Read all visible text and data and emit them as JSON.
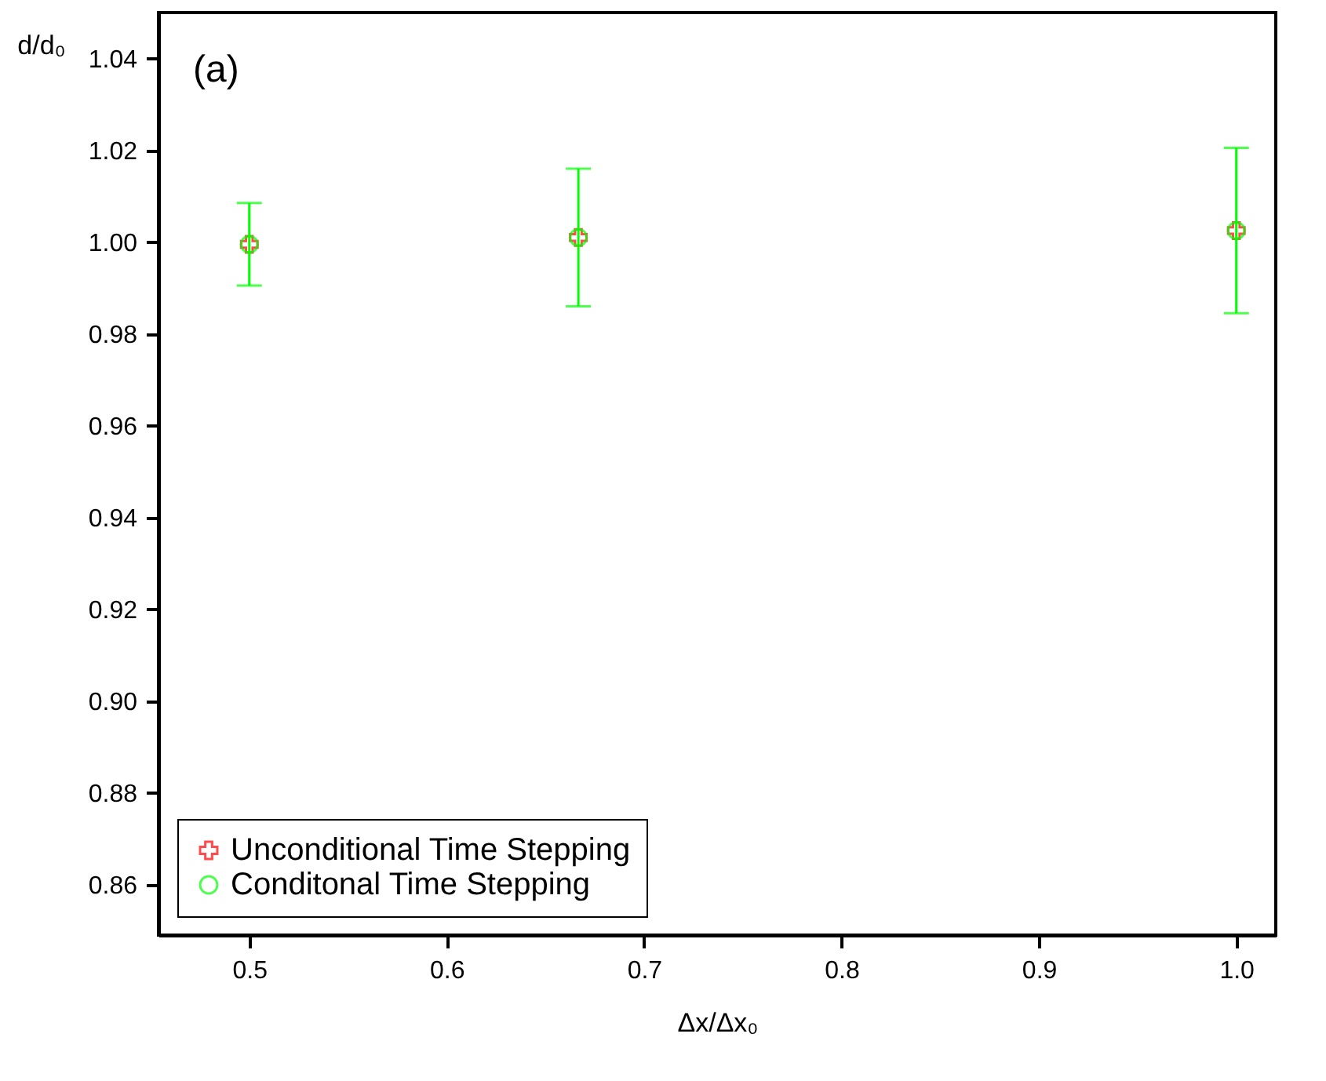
{
  "chart_data": {
    "type": "scatter",
    "xlabel": "Δx/Δx₀",
    "ylabel": "d/d₀",
    "annotations": [
      "(a)"
    ],
    "x": [
      0.5,
      0.6667,
      1.0
    ],
    "series": [
      {
        "name": "Unconditional Time Stepping",
        "color": "#ff0000",
        "marker": "cross",
        "values": [
          0.9995,
          1.001,
          1.0025
        ]
      },
      {
        "name": "Conditonal Time Stepping",
        "color": "#00ff00",
        "marker": "circle",
        "values": [
          0.9995,
          1.001,
          1.0025
        ],
        "errors": [
          0.009,
          0.015,
          0.018
        ]
      }
    ],
    "xlim": [
      0.454,
      1.02
    ],
    "xticks": [
      {
        "value": 0.5,
        "label": "0.5"
      },
      {
        "value": 0.6,
        "label": "0.6"
      },
      {
        "value": 0.7,
        "label": "0.7"
      },
      {
        "value": 0.8,
        "label": "0.8"
      },
      {
        "value": 0.9,
        "label": "0.9"
      },
      {
        "value": 1.0,
        "label": "1.0"
      }
    ],
    "ylim": [
      0.849,
      1.05
    ],
    "yticks": [
      0.86,
      0.88,
      {
        "value": 0.9,
        "label": "0.90"
      },
      0.92,
      0.94,
      0.96,
      0.98,
      {
        "value": 1.0,
        "label": "1.00"
      },
      1.02,
      1.04
    ],
    "grid": false,
    "legend": "bottom left"
  }
}
